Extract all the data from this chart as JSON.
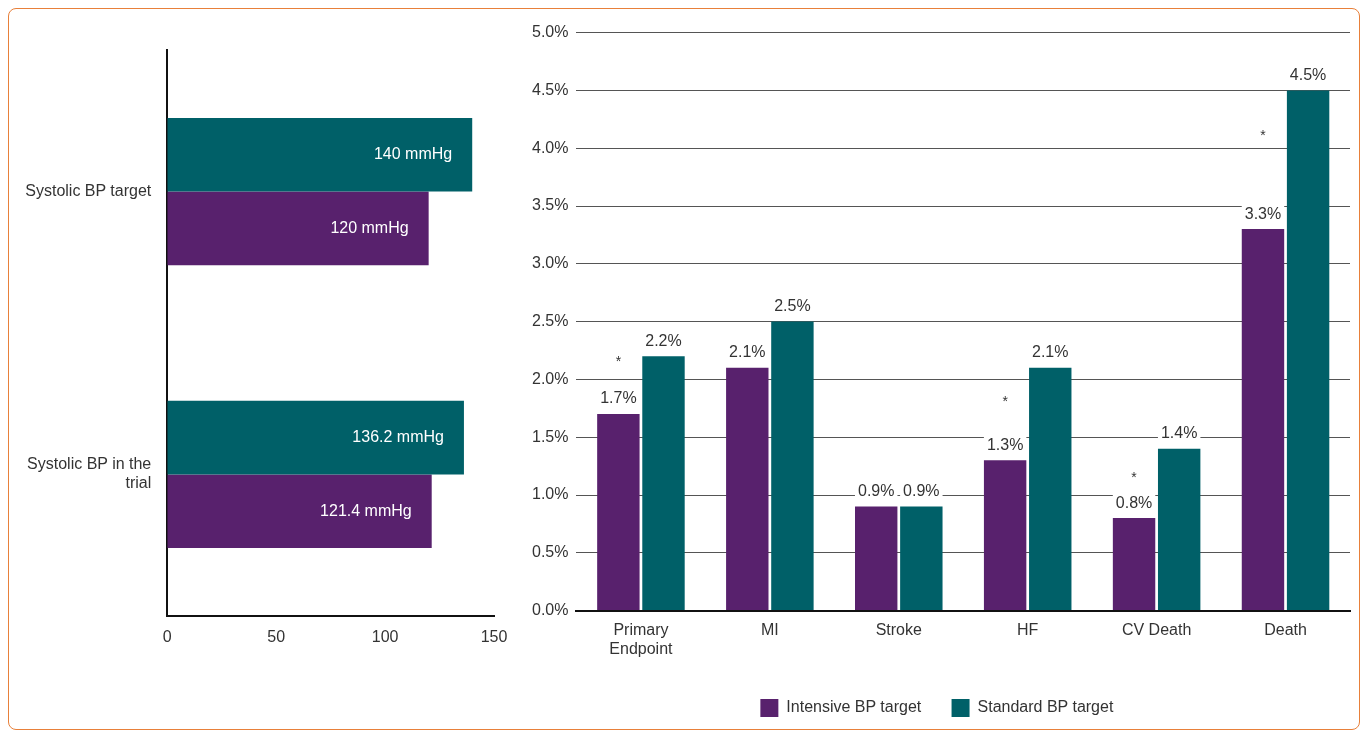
{
  "chart_data": [
    {
      "type": "bar",
      "orientation": "horizontal",
      "categories": [
        "Systolic BP target",
        "Systolic BP in the trial"
      ],
      "series": [
        {
          "color": "#006068",
          "values": [
            140,
            136.2
          ],
          "value_labels": [
            "140 mmHg",
            "136.2 mmHg"
          ]
        },
        {
          "color": "#58216d",
          "values": [
            120,
            121.4
          ],
          "value_labels": [
            "120 mmHg",
            "121.4 mmHg"
          ]
        }
      ],
      "xlim": [
        0,
        150
      ],
      "xticks": [
        0,
        50,
        100,
        150
      ],
      "grid": false
    },
    {
      "type": "bar",
      "categories": [
        "Primary Endpoint",
        "MI",
        "Stroke",
        "HF",
        "CV Death",
        "Death"
      ],
      "series": [
        {
          "name": "Intensive BP target",
          "color": "#58216d",
          "values": [
            1.7,
            2.1,
            0.9,
            1.3,
            0.8,
            3.3
          ],
          "value_labels": [
            "1.7%",
            "2.1%",
            "0.9%",
            "1.3%",
            "0.8%",
            "3.3%"
          ]
        },
        {
          "name": "Standard BP target",
          "color": "#006068",
          "values": [
            2.2,
            2.5,
            0.9,
            2.1,
            1.4,
            4.5
          ],
          "value_labels": [
            "2.2%",
            "2.5%",
            "0.9%",
            "2.1%",
            "1.4%",
            "4.5%"
          ]
        }
      ],
      "ylim": [
        0,
        5
      ],
      "yticks": [
        {
          "value": 0,
          "label": "0.0%"
        },
        {
          "value": 0.5,
          "label": "0.5%"
        },
        {
          "value": 1,
          "label": "1.0%"
        },
        {
          "value": 1.5,
          "label": "1.5%"
        },
        {
          "value": 2,
          "label": "2.0%"
        },
        {
          "value": 2.5,
          "label": "2.5%"
        },
        {
          "value": 3,
          "label": "3.0%"
        },
        {
          "value": 3.5,
          "label": "3.5%"
        },
        {
          "value": 4,
          "label": "4.0%"
        },
        {
          "value": 4.5,
          "label": "4.5%"
        },
        {
          "value": 5,
          "label": "5.0%"
        }
      ],
      "grid": "y",
      "legend": "bottom",
      "annotations": [
        {
          "text": "*",
          "x": "Primary Endpoint",
          "y": 2.15
        },
        {
          "text": "*",
          "x": "HF",
          "y": 1.8
        },
        {
          "text": "*",
          "x": "CV Death",
          "y": 1.15
        },
        {
          "text": "*",
          "x": "Death",
          "y": 4.1
        }
      ]
    }
  ]
}
